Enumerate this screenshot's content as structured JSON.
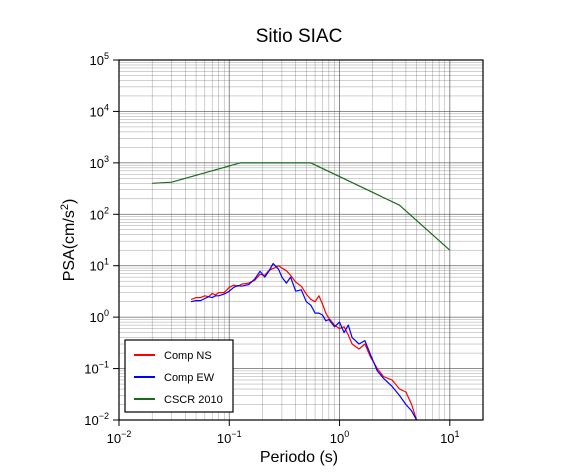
{
  "chart_data": {
    "type": "line",
    "title": "Sitio SIAC",
    "xlabel": "Periodo (s)",
    "ylabel": "PSA(cm/s2)",
    "x_scale": "log",
    "y_scale": "log",
    "xlim": [
      0.01,
      20
    ],
    "ylim": [
      0.01,
      100000
    ],
    "grid": true,
    "legend_position": "bottom-left",
    "x_ticks": [
      {
        "base": "10",
        "exp": "−2"
      },
      {
        "base": "10",
        "exp": "−1"
      },
      {
        "base": "10",
        "exp": "0"
      },
      {
        "base": "10",
        "exp": "1"
      }
    ],
    "y_ticks": [
      {
        "base": "10",
        "exp": "−2"
      },
      {
        "base": "10",
        "exp": "−1"
      },
      {
        "base": "10",
        "exp": "0"
      },
      {
        "base": "10",
        "exp": "1"
      },
      {
        "base": "10",
        "exp": "2"
      },
      {
        "base": "10",
        "exp": "3"
      },
      {
        "base": "10",
        "exp": "4"
      },
      {
        "base": "10",
        "exp": "5"
      }
    ],
    "series": [
      {
        "name": "Comp NS",
        "color": "#ff0000",
        "x": [
          0.045,
          0.05,
          0.055,
          0.06,
          0.065,
          0.07,
          0.075,
          0.08,
          0.09,
          0.1,
          0.11,
          0.12,
          0.13,
          0.15,
          0.17,
          0.19,
          0.21,
          0.23,
          0.25,
          0.28,
          0.3,
          0.33,
          0.36,
          0.4,
          0.45,
          0.5,
          0.55,
          0.6,
          0.65,
          0.7,
          0.75,
          0.8,
          0.9,
          1.0,
          1.1,
          1.2,
          1.3,
          1.5,
          1.7,
          1.9,
          2.2,
          2.5,
          3.0,
          3.5,
          4.0,
          4.5,
          5.0
        ],
        "y": [
          2.2,
          2.4,
          2.4,
          2.6,
          2.5,
          2.9,
          2.7,
          3.0,
          3.0,
          3.8,
          4.2,
          4.0,
          4.4,
          4.6,
          5.2,
          6.8,
          6.5,
          8.2,
          8.8,
          10.0,
          9.0,
          8.0,
          6.5,
          4.8,
          4.0,
          2.8,
          2.2,
          2.0,
          2.6,
          1.8,
          1.2,
          0.95,
          0.7,
          0.6,
          0.65,
          0.45,
          0.3,
          0.24,
          0.3,
          0.17,
          0.1,
          0.07,
          0.06,
          0.04,
          0.035,
          0.02,
          0.01
        ]
      },
      {
        "name": "Comp EW",
        "color": "#0000ff",
        "x": [
          0.045,
          0.05,
          0.055,
          0.06,
          0.065,
          0.07,
          0.075,
          0.08,
          0.09,
          0.1,
          0.11,
          0.12,
          0.13,
          0.15,
          0.17,
          0.19,
          0.21,
          0.23,
          0.25,
          0.28,
          0.3,
          0.33,
          0.36,
          0.4,
          0.45,
          0.5,
          0.55,
          0.6,
          0.65,
          0.7,
          0.75,
          0.8,
          0.9,
          1.0,
          1.1,
          1.2,
          1.3,
          1.5,
          1.7,
          1.9,
          2.2,
          2.5,
          3.0,
          3.5,
          4.0,
          4.5,
          5.0
        ],
        "y": [
          2.0,
          2.1,
          2.1,
          2.3,
          2.5,
          2.4,
          2.6,
          2.6,
          2.8,
          3.2,
          3.8,
          4.1,
          4.0,
          4.3,
          5.5,
          7.8,
          6.0,
          8.0,
          11.0,
          8.5,
          6.0,
          4.6,
          6.0,
          3.2,
          3.4,
          2.0,
          1.7,
          1.2,
          1.2,
          1.1,
          0.85,
          0.9,
          0.65,
          0.8,
          0.5,
          0.7,
          0.4,
          0.3,
          0.35,
          0.19,
          0.09,
          0.065,
          0.045,
          0.03,
          0.02,
          0.015,
          0.01
        ]
      },
      {
        "name": "CSCR 2010",
        "color": "#1a6a1a",
        "x": [
          0.02,
          0.03,
          0.125,
          0.55,
          3.5,
          10
        ],
        "y": [
          400,
          420,
          1000,
          1000,
          150,
          20
        ]
      }
    ]
  }
}
